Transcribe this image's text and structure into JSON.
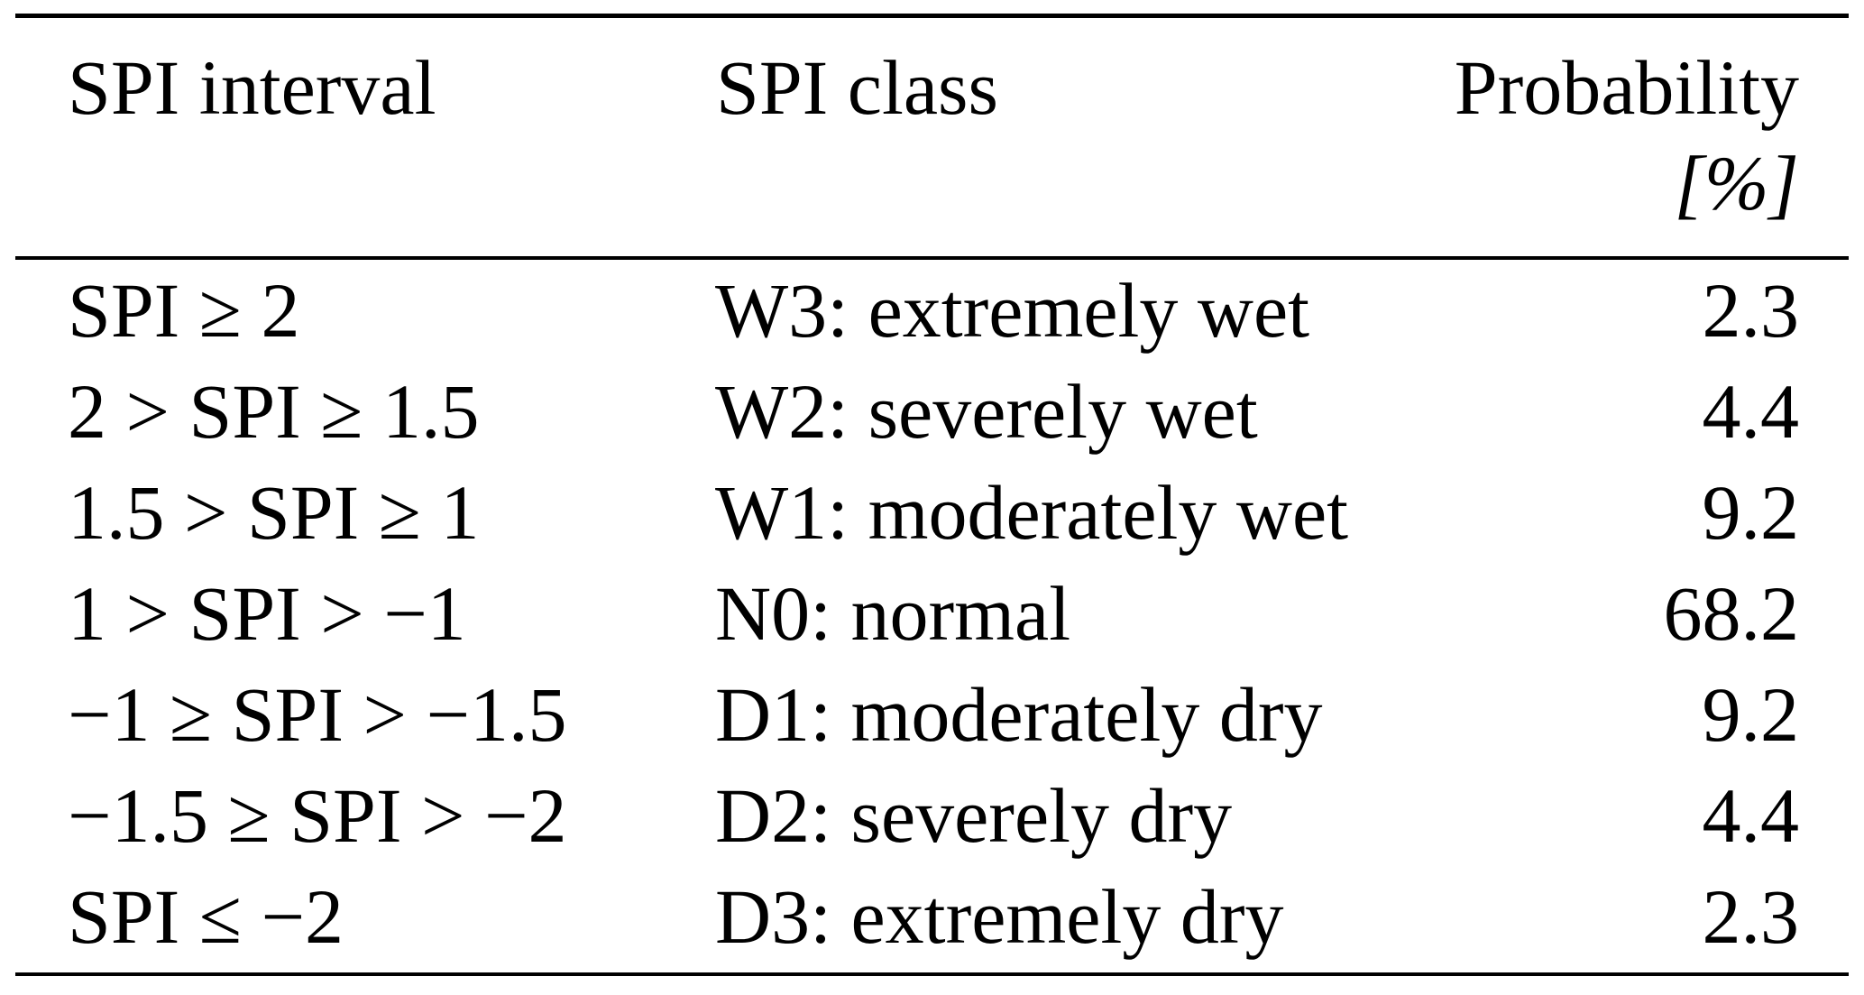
{
  "table": {
    "headers": {
      "interval": "SPI interval",
      "spi_class": "SPI class",
      "probability": "Probability",
      "probability_unit": "[%]"
    },
    "rows": [
      {
        "interval": "SPI ≥ 2",
        "spi_class": "W3: extremely wet",
        "probability": "2.3"
      },
      {
        "interval": "2 > SPI ≥ 1.5",
        "spi_class": "W2: severely wet",
        "probability": "4.4"
      },
      {
        "interval": "1.5 > SPI ≥ 1",
        "spi_class": "W1: moderately wet",
        "probability": "9.2"
      },
      {
        "interval": "1 > SPI > −1",
        "spi_class": "N0: normal",
        "probability": "68.2"
      },
      {
        "interval": "−1 ≥ SPI > −1.5",
        "spi_class": "D1: moderately dry",
        "probability": "9.2"
      },
      {
        "interval": "−1.5 ≥ SPI > −2",
        "spi_class": "D2: severely dry",
        "probability": "4.4"
      },
      {
        "interval": "SPI ≤ −2",
        "spi_class": "D3: extremely dry",
        "probability": "2.3"
      }
    ]
  },
  "colors": {
    "background": "#ffffff",
    "text": "#000000",
    "rule": "#000000"
  }
}
